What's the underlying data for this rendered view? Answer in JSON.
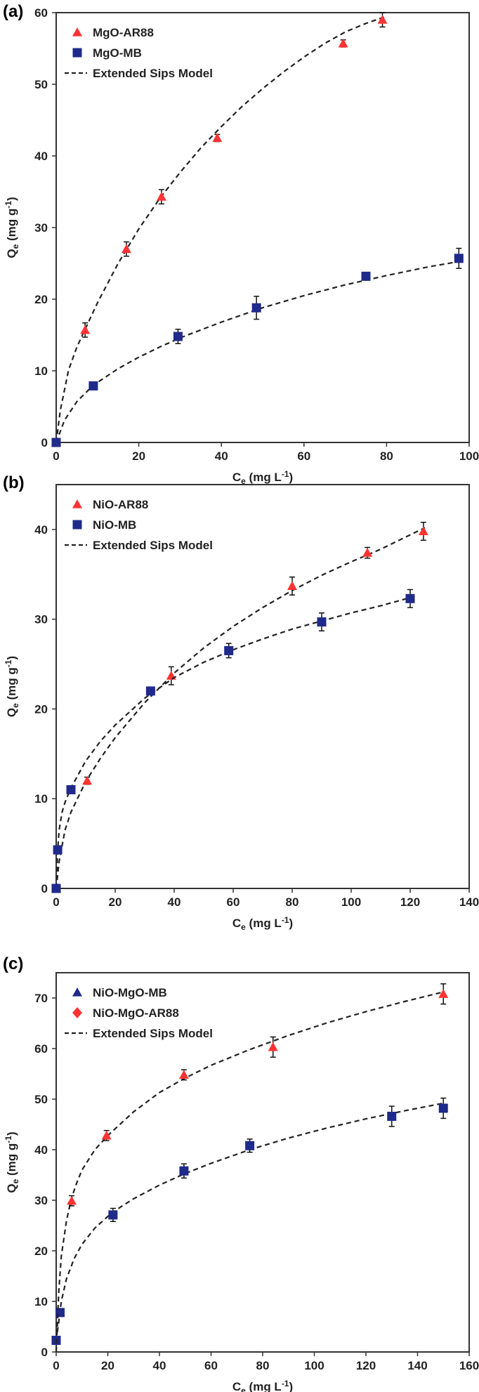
{
  "chart_data": [
    {
      "type": "scatter",
      "panel_label": "(a)",
      "xlabel": "Ce (mg L-1)",
      "ylabel": "Qe (mg g-1)",
      "xlim": [
        0,
        100
      ],
      "ylim": [
        0,
        60
      ],
      "xticks": [
        0,
        20,
        40,
        60,
        80,
        100
      ],
      "yticks": [
        0,
        10,
        20,
        30,
        40,
        50,
        60
      ],
      "legend_position": "top-left",
      "fit_label": "Extended Sips Model",
      "series": [
        {
          "name": "MgO-AR88",
          "marker": "triangle",
          "color": "#ff3333",
          "x": [
            0,
            7,
            17,
            25.5,
            39,
            69.5,
            79
          ],
          "y": [
            0,
            15.7,
            27,
            34.3,
            42.5,
            55.7,
            59
          ],
          "err": [
            0,
            1,
            1,
            1,
            0.5,
            0.5,
            1
          ],
          "fit_x": [
            0,
            1,
            3,
            5,
            7,
            10,
            15,
            20,
            25,
            30,
            35,
            40,
            45,
            50,
            55,
            60,
            65,
            70,
            75,
            80
          ],
          "fit_y": [
            0,
            4.5,
            10.1,
            13.3,
            15.8,
            19.5,
            25,
            29.8,
            34,
            37.7,
            41.1,
            44.1,
            46.9,
            49.4,
            51.7,
            53.8,
            55.7,
            57.3,
            58.5,
            59.5
          ]
        },
        {
          "name": "MgO-MB",
          "marker": "square",
          "color": "#1f2a8a",
          "x": [
            0,
            9,
            29.5,
            48.5,
            75,
            97.5
          ],
          "y": [
            0,
            7.9,
            14.8,
            18.8,
            23.2,
            25.7
          ],
          "err": [
            0,
            0.4,
            1,
            1.6,
            0.5,
            1.4
          ],
          "fit_x": [
            0,
            2,
            5,
            9,
            15,
            20,
            25,
            30,
            40,
            50,
            60,
            70,
            80,
            90,
            98
          ],
          "fit_y": [
            0,
            3.1,
            5.7,
            8,
            10.3,
            11.9,
            13.3,
            14.6,
            16.8,
            18.8,
            20.5,
            22,
            23.3,
            24.5,
            25.3
          ]
        }
      ]
    },
    {
      "type": "scatter",
      "panel_label": "(b)",
      "xlabel": "Ce (mg L-1)",
      "ylabel": "Qe (mg g-1)",
      "xlim": [
        0,
        140
      ],
      "ylim": [
        0,
        45
      ],
      "xticks": [
        0,
        20,
        40,
        60,
        80,
        100,
        120,
        140
      ],
      "yticks": [
        0,
        10,
        20,
        30,
        40
      ],
      "legend_position": "top-left",
      "fit_label": "Extended Sips Model",
      "series": [
        {
          "name": "NiO-AR88",
          "marker": "triangle",
          "color": "#ff3333",
          "x": [
            0,
            10.5,
            39,
            80,
            105.5,
            124.5
          ],
          "y": [
            0,
            12,
            23.7,
            33.7,
            37.4,
            39.8
          ],
          "err": [
            0,
            0.4,
            1,
            1,
            0.6,
            1
          ],
          "fit_x": [
            0,
            1,
            3,
            5,
            10,
            15,
            20,
            30,
            40,
            50,
            60,
            70,
            80,
            90,
            100,
            110,
            125
          ],
          "fit_y": [
            0,
            3,
            6.5,
            8.5,
            11.9,
            14.5,
            16.8,
            20.7,
            24,
            26.8,
            29.2,
            31.3,
            33.2,
            34.9,
            36.4,
            37.8,
            40.2
          ]
        },
        {
          "name": "NiO-MB",
          "marker": "square",
          "color": "#1f2a8a",
          "x": [
            0,
            0.5,
            5,
            32,
            58.5,
            90,
            120
          ],
          "y": [
            0,
            4.3,
            11,
            22,
            26.5,
            29.7,
            32.3
          ],
          "err": [
            0,
            0.3,
            0.4,
            0.4,
            0.8,
            1,
            1
          ],
          "fit_x": [
            0,
            0.5,
            1,
            2,
            3,
            5,
            10,
            15,
            20,
            30,
            40,
            50,
            60,
            70,
            80,
            90,
            100,
            110,
            120
          ],
          "fit_y": [
            0,
            4.3,
            6.5,
            8.5,
            9.6,
            11.2,
            14.2,
            16.4,
            18.2,
            21.2,
            23.5,
            25.2,
            26.6,
            27.8,
            28.9,
            29.8,
            30.7,
            31.5,
            32.4
          ]
        }
      ]
    },
    {
      "type": "scatter",
      "panel_label": "(c)",
      "xlabel": "Ce (mg L-1)",
      "ylabel": "Qe (mg g-1)",
      "xlim": [
        0,
        160
      ],
      "ylim": [
        0,
        75
      ],
      "xticks": [
        0,
        20,
        40,
        60,
        80,
        100,
        120,
        140,
        160
      ],
      "yticks": [
        0,
        10,
        20,
        30,
        40,
        50,
        60,
        70
      ],
      "legend_position": "top-left",
      "fit_label": "Extended Sips Model",
      "series": [
        {
          "name": "NiO-MgO-MB",
          "marker": "triangle",
          "legend_color": "#1f2a8a",
          "color": "#1f2a8a",
          "point_marker": "square",
          "x": [
            0,
            1.5,
            22,
            49.5,
            75,
            130,
            150
          ],
          "y": [
            2.3,
            7.8,
            27.1,
            35.8,
            40.8,
            46.6,
            48.2
          ],
          "err": [
            0,
            0.5,
            1.3,
            1.4,
            1.3,
            2,
            2
          ],
          "fit_x": [
            0,
            1,
            2,
            4,
            7,
            10,
            15,
            20,
            25,
            30,
            40,
            50,
            60,
            75,
            90,
            105,
            120,
            135,
            150
          ],
          "fit_y": [
            2.3,
            6,
            10,
            14.5,
            18.5,
            21.3,
            24.5,
            26.8,
            28.7,
            30.3,
            33,
            35.3,
            37.3,
            40,
            42.3,
            44.3,
            46.1,
            47.7,
            49.2
          ]
        },
        {
          "name": "NiO-MgO-AR88",
          "marker": "diamond",
          "legend_color": "#ff3333",
          "color": "#ff3333",
          "point_marker": "triangle",
          "x": [
            6,
            19.5,
            49.5,
            84,
            150
          ],
          "y": [
            29.9,
            42.8,
            54.8,
            60.3,
            70.8
          ],
          "err": [
            1,
            1,
            1,
            2,
            2
          ],
          "fit_x": [
            0,
            1,
            2,
            4,
            6,
            8,
            10,
            15,
            20,
            30,
            40,
            50,
            60,
            75,
            90,
            105,
            120,
            135,
            150
          ],
          "fit_y": [
            0,
            12,
            19,
            26,
            30.5,
            33.5,
            36,
            40,
            42.8,
            47.5,
            51.3,
            54.2,
            56.7,
            59.8,
            62.6,
            65.1,
            67.3,
            69.3,
            71.2
          ]
        }
      ]
    }
  ]
}
